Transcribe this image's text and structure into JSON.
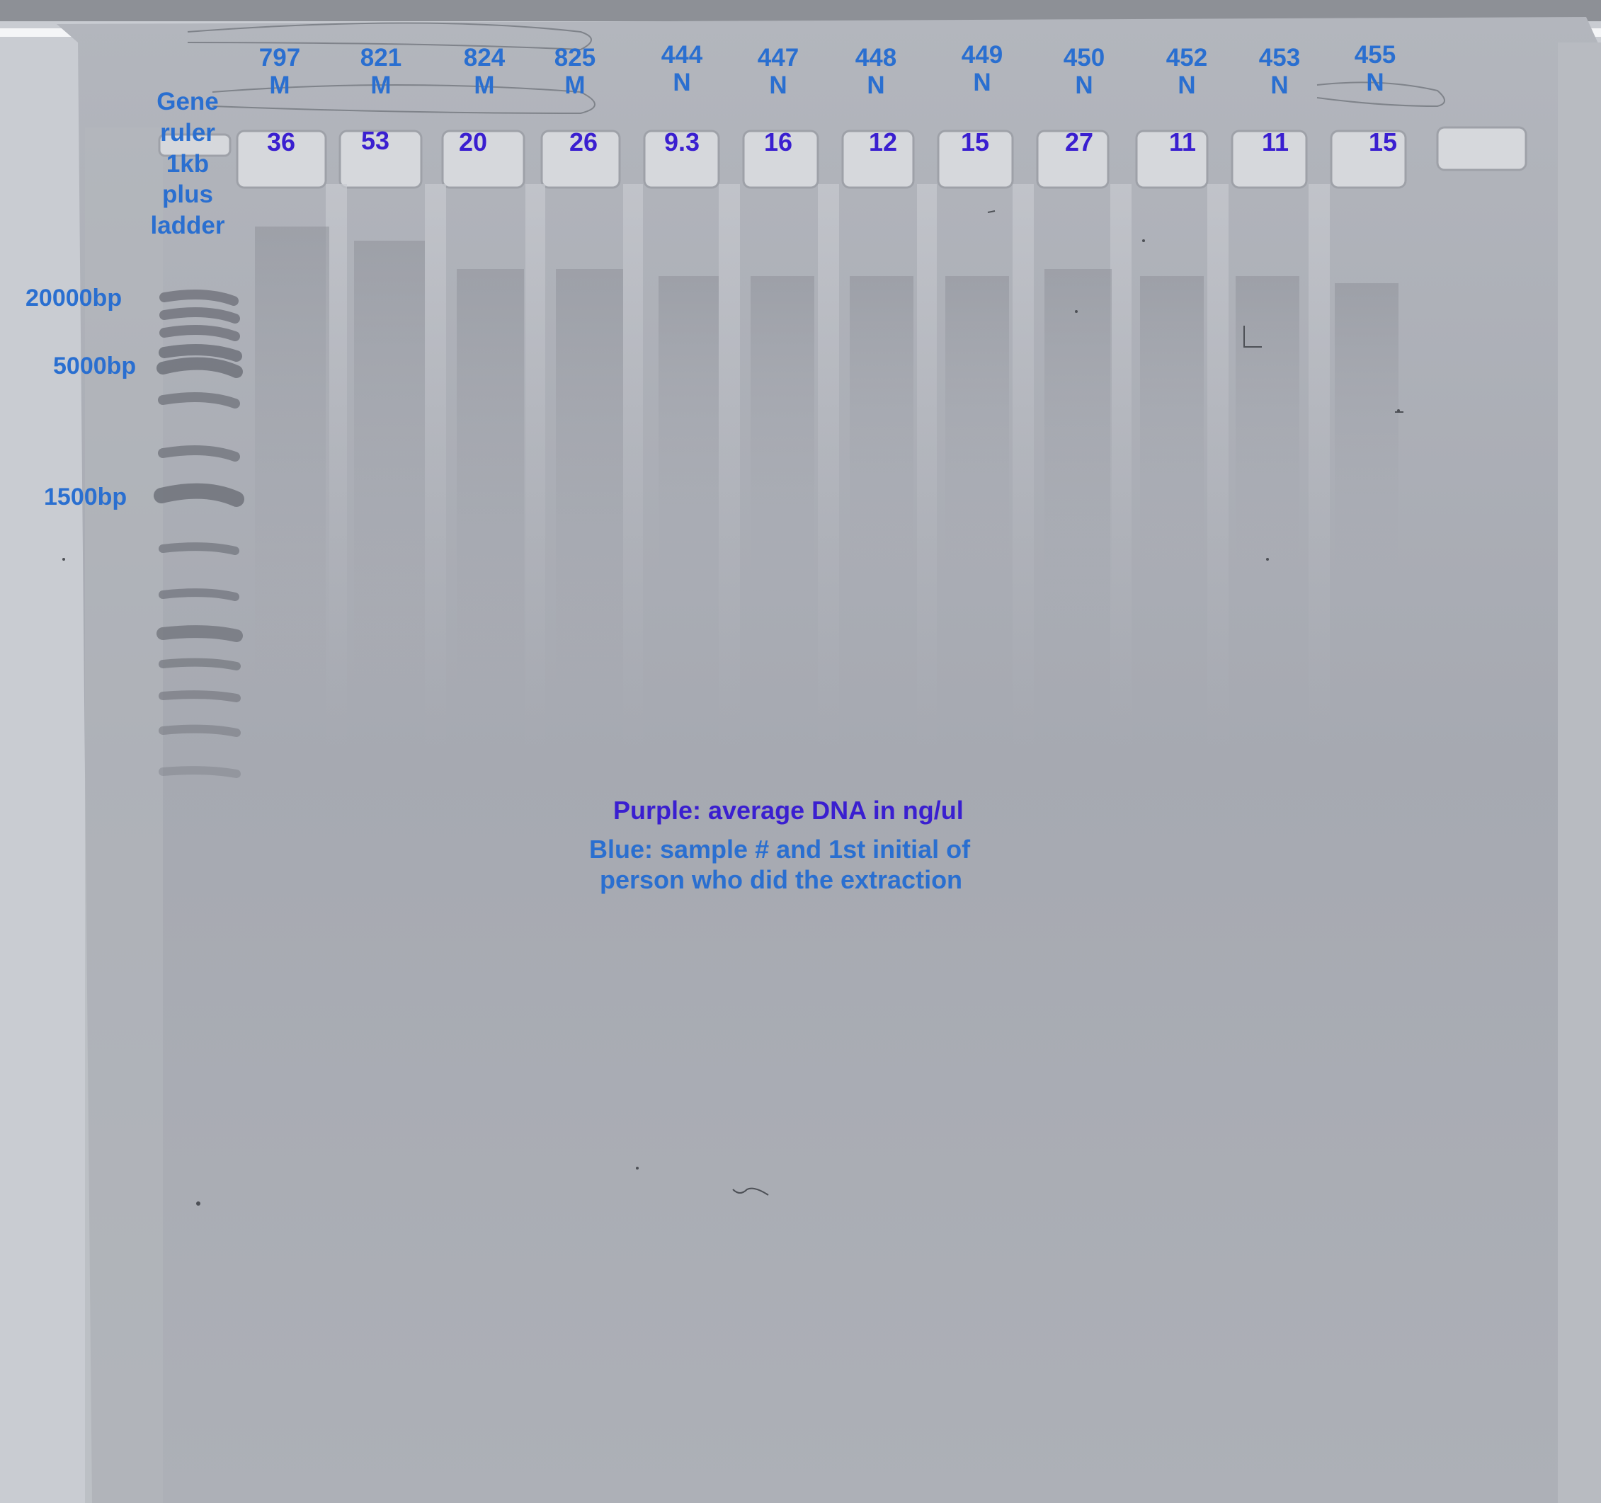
{
  "ladder": {
    "title_lines": [
      "Gene",
      "ruler",
      "1kb",
      "plus",
      "ladder"
    ],
    "markers": [
      "20000bp",
      "5000bp",
      "1500bp"
    ]
  },
  "lanes": [
    {
      "sample": "797",
      "initial": "M",
      "dna": "36"
    },
    {
      "sample": "821",
      "initial": "M",
      "dna": "53"
    },
    {
      "sample": "824",
      "initial": "M",
      "dna": "20"
    },
    {
      "sample": "825",
      "initial": "M",
      "dna": "26"
    },
    {
      "sample": "444",
      "initial": "N",
      "dna": "9.3"
    },
    {
      "sample": "447",
      "initial": "N",
      "dna": "16"
    },
    {
      "sample": "448",
      "initial": "N",
      "dna": "12"
    },
    {
      "sample": "449",
      "initial": "N",
      "dna": "15"
    },
    {
      "sample": "450",
      "initial": "N",
      "dna": "27"
    },
    {
      "sample": "452",
      "initial": "N",
      "dna": "11"
    },
    {
      "sample": "453",
      "initial": "N",
      "dna": "11"
    },
    {
      "sample": "455",
      "initial": "N",
      "dna": "15"
    }
  ],
  "legend": {
    "purple": "Purple: average DNA in ng/ul",
    "blue_line1": "Blue: sample # and 1st initial of",
    "blue_line2": "person who did the extraction"
  },
  "colors": {
    "label_blue": "#2a6fd0",
    "label_purple": "#3a1fd0",
    "gel_background": "#a9acb4"
  }
}
